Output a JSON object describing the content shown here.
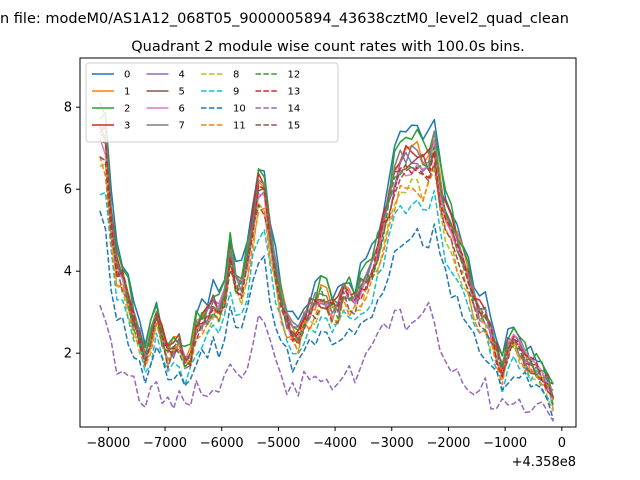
{
  "page": {
    "suptitle": "n file: modeM0/AS1A12_068T05_9000005894_43638cztM0_level2_quad_clean",
    "title": "Quadrant 2 module wise count rates with 100.0s bins."
  },
  "chart_data": {
    "type": "line",
    "title": "Quadrant 2 module wise count rates with 100.0s bins.",
    "xlabel": "",
    "ylabel": "",
    "offset_text": "+4.358e8",
    "xlim": [
      -8500,
      250
    ],
    "ylim": [
      0.2,
      9.2
    ],
    "xticks": [
      -8000,
      -7000,
      -6000,
      -5000,
      -4000,
      -3000,
      -2000,
      -1000,
      0
    ],
    "xtick_labels": [
      "−8000",
      "−7000",
      "−6000",
      "−5000",
      "−4000",
      "−3000",
      "−2000",
      "−1000",
      "0"
    ],
    "yticks": [
      2,
      4,
      6,
      8
    ],
    "ytick_labels": [
      "2",
      "4",
      "6",
      "8"
    ],
    "grid": false,
    "legend_position": "upper-left",
    "legend_columns": 4,
    "x_start": -8150,
    "x_step": 100,
    "x_count": 81,
    "anchor_x": [
      -8150,
      -8050,
      -7900,
      -7750,
      -7550,
      -7350,
      -7150,
      -6950,
      -6750,
      -6600,
      -6450,
      -6300,
      -6150,
      -6000,
      -5850,
      -5700,
      -5550,
      -5300,
      -5100,
      -4950,
      -4800,
      -4650,
      -4500,
      -4350,
      -4200,
      -4000,
      -3850,
      -3650,
      -3500,
      -3300,
      -3100,
      -2900,
      -2700,
      -2550,
      -2400,
      -2250,
      -2100,
      -1950,
      -1800,
      -1650,
      -1500,
      -1350,
      -1200,
      -1050,
      -900,
      -750,
      -600,
      -450,
      -300,
      -150
    ],
    "profiles": {
      "main": [
        7.6,
        7.4,
        4.4,
        4.0,
        2.9,
        2.0,
        2.9,
        2.0,
        2.3,
        1.6,
        2.7,
        2.9,
        3.3,
        3.0,
        4.6,
        3.4,
        4.4,
        6.6,
        4.5,
        3.4,
        2.6,
        2.5,
        3.1,
        3.3,
        3.6,
        3.0,
        3.6,
        3.4,
        3.9,
        4.3,
        5.5,
        6.8,
        6.9,
        7.0,
        6.6,
        7.3,
        5.7,
        5.2,
        4.6,
        4.0,
        3.1,
        3.0,
        2.3,
        1.6,
        2.5,
        2.2,
        1.8,
        1.7,
        1.5,
        0.9
      ],
      "low": [
        3.3,
        2.8,
        1.7,
        1.8,
        1.3,
        0.8,
        1.1,
        0.7,
        1.0,
        0.9,
        1.1,
        1.2,
        1.1,
        1.3,
        1.6,
        1.4,
        1.8,
        3.4,
        1.8,
        1.3,
        1.0,
        1.2,
        1.4,
        1.2,
        1.6,
        1.2,
        1.5,
        1.5,
        1.8,
        2.3,
        2.6,
        3.0,
        2.3,
        2.9,
        3.3,
        2.8,
        2.0,
        1.5,
        1.3,
        1.2,
        1.1,
        1.2,
        0.6,
        0.7,
        0.9,
        0.8,
        0.8,
        0.7,
        0.7,
        0.5
      ]
    },
    "series": [
      {
        "name": "0",
        "color": "#1f77b4",
        "dash": "solid",
        "profile": "main",
        "scale": 1.05,
        "offset": 0.1,
        "seed": 1
      },
      {
        "name": "1",
        "color": "#ff7f0e",
        "dash": "solid",
        "profile": "main",
        "scale": 1.0,
        "offset": 0.0,
        "seed": 2
      },
      {
        "name": "2",
        "color": "#2ca02c",
        "dash": "solid",
        "profile": "main",
        "scale": 1.02,
        "offset": 0.1,
        "seed": 3
      },
      {
        "name": "3",
        "color": "#d62728",
        "dash": "solid",
        "profile": "main",
        "scale": 1.0,
        "offset": 0.0,
        "seed": 4
      },
      {
        "name": "4",
        "color": "#9467bd",
        "dash": "solid",
        "profile": "main",
        "scale": 0.97,
        "offset": 0.0,
        "seed": 5
      },
      {
        "name": "5",
        "color": "#8c564b",
        "dash": "solid",
        "profile": "main",
        "scale": 0.98,
        "offset": 0.0,
        "seed": 6
      },
      {
        "name": "6",
        "color": "#e377c2",
        "dash": "solid",
        "profile": "main",
        "scale": 0.95,
        "offset": 0.0,
        "seed": 7
      },
      {
        "name": "7",
        "color": "#7f7f7f",
        "dash": "solid",
        "profile": "main",
        "scale": 0.99,
        "offset": 0.0,
        "seed": 8
      },
      {
        "name": "8",
        "color": "#bcbd22",
        "dash": "dashed",
        "profile": "main",
        "scale": 0.88,
        "offset": 0.0,
        "seed": 9
      },
      {
        "name": "9",
        "color": "#17becf",
        "dash": "dashed",
        "profile": "main",
        "scale": 0.8,
        "offset": 0.0,
        "seed": 10
      },
      {
        "name": "10",
        "color": "#1f77b4",
        "dash": "dashed",
        "profile": "main",
        "scale": 0.7,
        "offset": -0.05,
        "seed": 11
      },
      {
        "name": "11",
        "color": "#ff7f0e",
        "dash": "dashed",
        "profile": "main",
        "scale": 0.88,
        "offset": 0.0,
        "seed": 12
      },
      {
        "name": "12",
        "color": "#2ca02c",
        "dash": "dashed",
        "profile": "main",
        "scale": 0.96,
        "offset": 0.0,
        "seed": 13
      },
      {
        "name": "13",
        "color": "#d62728",
        "dash": "dashed",
        "profile": "main",
        "scale": 0.95,
        "offset": 0.0,
        "seed": 14
      },
      {
        "name": "14",
        "color": "#9467bd",
        "dash": "dashed",
        "profile": "low",
        "scale": 1.0,
        "offset": 0.0,
        "seed": 15
      },
      {
        "name": "15",
        "color": "#8c564b",
        "dash": "dashed",
        "profile": "main",
        "scale": 0.92,
        "offset": 0.0,
        "seed": 16
      }
    ]
  }
}
